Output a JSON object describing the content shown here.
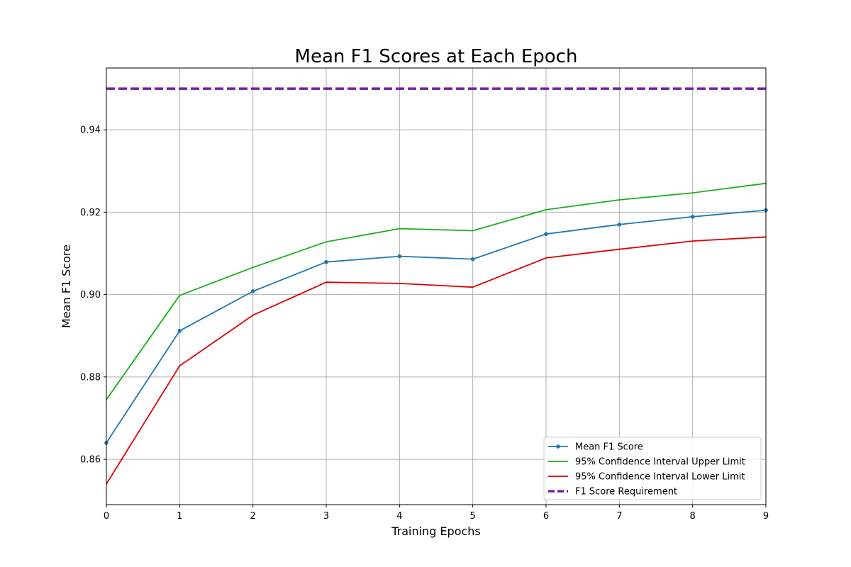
{
  "chart_data": {
    "type": "line",
    "title": "Mean F1 Scores at Each Epoch",
    "xlabel": "Training Epochs",
    "ylabel": "Mean F1 Score",
    "xlim": [
      0,
      9
    ],
    "ylim": [
      0.849,
      0.955
    ],
    "x": [
      0,
      1,
      2,
      3,
      4,
      5,
      6,
      7,
      8,
      9
    ],
    "x_ticks": [
      "0",
      "1",
      "2",
      "3",
      "4",
      "5",
      "6",
      "7",
      "8",
      "9"
    ],
    "y_ticks": [
      {
        "value": 0.86,
        "label": "0.86"
      },
      {
        "value": 0.88,
        "label": "0.88"
      },
      {
        "value": 0.9,
        "label": "0.90"
      },
      {
        "value": 0.92,
        "label": "0.92"
      },
      {
        "value": 0.94,
        "label": "0.94"
      }
    ],
    "grid": true,
    "legend_position": "lower-right",
    "series": [
      {
        "name": "Mean F1 Score",
        "color": "#1f77b4",
        "markers": true,
        "dashed": false,
        "values": [
          0.864,
          0.8912,
          0.9008,
          0.9079,
          0.9093,
          0.9086,
          0.9147,
          0.917,
          0.9189,
          0.9205
        ]
      },
      {
        "name": "95% Confidence Interval Upper Limit",
        "color": "#1aaf1a",
        "markers": false,
        "dashed": false,
        "values": [
          0.8745,
          0.8998,
          0.9066,
          0.9128,
          0.916,
          0.9155,
          0.9206,
          0.923,
          0.9247,
          0.927
        ]
      },
      {
        "name": "95% Confidence Interval Lower Limit",
        "color": "#dd0000",
        "markers": false,
        "dashed": false,
        "values": [
          0.854,
          0.8827,
          0.895,
          0.903,
          0.9027,
          0.9018,
          0.9089,
          0.911,
          0.913,
          0.914
        ]
      },
      {
        "name": "F1 Score Requirement",
        "color": "#7a1fa2",
        "markers": false,
        "dashed": true,
        "values": [
          0.95,
          0.95,
          0.95,
          0.95,
          0.95,
          0.95,
          0.95,
          0.95,
          0.95,
          0.95
        ]
      }
    ]
  }
}
